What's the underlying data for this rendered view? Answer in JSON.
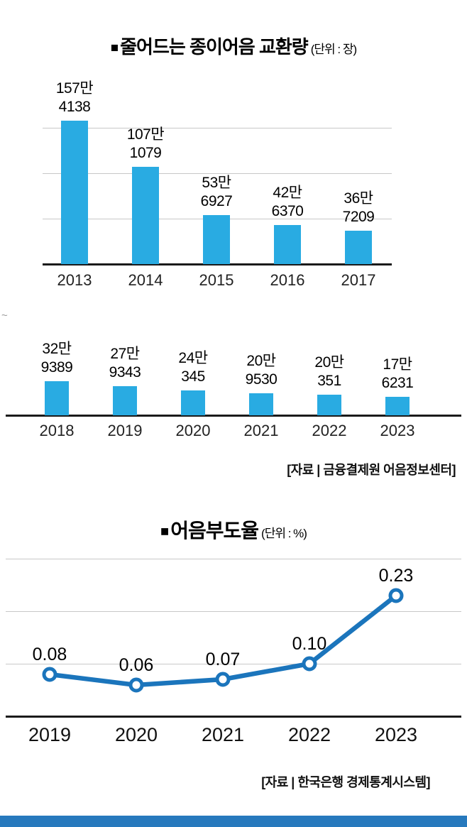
{
  "colors": {
    "bar": "#29abe2",
    "line": "#1b75bc",
    "grid": "#c8c8c8",
    "axis": "#1a1a1a",
    "strip": "#2779bd",
    "text": "#111111"
  },
  "axis_break_mark": "~",
  "chart_data": [
    {
      "type": "bar",
      "bullet": "■",
      "title": "줄어드는 종이어음 교환량",
      "unit": "(단위 : 장)",
      "grid": true,
      "bar_color": "#29abe2",
      "rows": [
        {
          "categories": [
            "2013",
            "2014",
            "2015",
            "2016",
            "2017"
          ],
          "values": [
            1574138,
            1071079,
            536927,
            426370,
            367209
          ],
          "value_labels": [
            [
              "157만",
              "4138"
            ],
            [
              "107만",
              "1079"
            ],
            [
              "53만",
              "6927"
            ],
            [
              "42만",
              "6370"
            ],
            [
              "36만",
              "7209"
            ]
          ]
        },
        {
          "categories": [
            "2018",
            "2019",
            "2020",
            "2021",
            "2022",
            "2023"
          ],
          "values": [
            329389,
            279343,
            240345,
            209530,
            200351,
            176231
          ],
          "value_labels": [
            [
              "32만",
              "9389"
            ],
            [
              "27만",
              "9343"
            ],
            [
              "24만",
              "345"
            ],
            [
              "20만",
              "9530"
            ],
            [
              "20만",
              "351"
            ],
            [
              "17만",
              "6231"
            ]
          ]
        }
      ],
      "source": "[자료 | 금융결제원 어음정보센터]"
    },
    {
      "type": "line",
      "bullet": "■",
      "title": "어음부도율",
      "unit": "(단위 : %)",
      "categories": [
        "2019",
        "2020",
        "2021",
        "2022",
        "2023"
      ],
      "values": [
        0.08,
        0.06,
        0.07,
        0.1,
        0.23
      ],
      "value_labels": [
        "0.08",
        "0.06",
        "0.07",
        "0.10",
        "0.23"
      ],
      "ylim": [
        0,
        0.3
      ],
      "grid": true,
      "line_color": "#1b75bc",
      "source": "[자료 | 한국은행 경제통계시스템]"
    }
  ]
}
